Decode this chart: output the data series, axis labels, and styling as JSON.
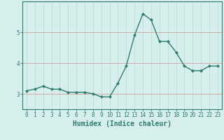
{
  "x": [
    0,
    1,
    2,
    3,
    4,
    5,
    6,
    7,
    8,
    9,
    10,
    11,
    12,
    13,
    14,
    15,
    16,
    17,
    18,
    19,
    20,
    21,
    22,
    23
  ],
  "y": [
    3.1,
    3.15,
    3.25,
    3.15,
    3.15,
    3.05,
    3.05,
    3.05,
    3.0,
    2.9,
    2.9,
    3.35,
    3.9,
    4.9,
    5.6,
    5.4,
    4.7,
    4.7,
    4.35,
    3.9,
    3.75,
    3.75,
    3.9,
    3.9
  ],
  "line_color": "#2e7d6e",
  "marker": "D",
  "marker_size": 2.2,
  "linewidth": 1.0,
  "bg_color": "#d6eeec",
  "grid_color_x": "#b8d8d4",
  "grid_color_y": "#d4a8a8",
  "xlabel": "Humidex (Indice chaleur)",
  "xlabel_fontsize": 7,
  "tick_fontsize": 5.5,
  "ylim": [
    2.5,
    6.0
  ],
  "yticks": [
    3,
    4,
    5
  ],
  "xlim": [
    -0.5,
    23.5
  ],
  "tick_color": "#2e7d6e",
  "spine_color": "#2e7d6e"
}
